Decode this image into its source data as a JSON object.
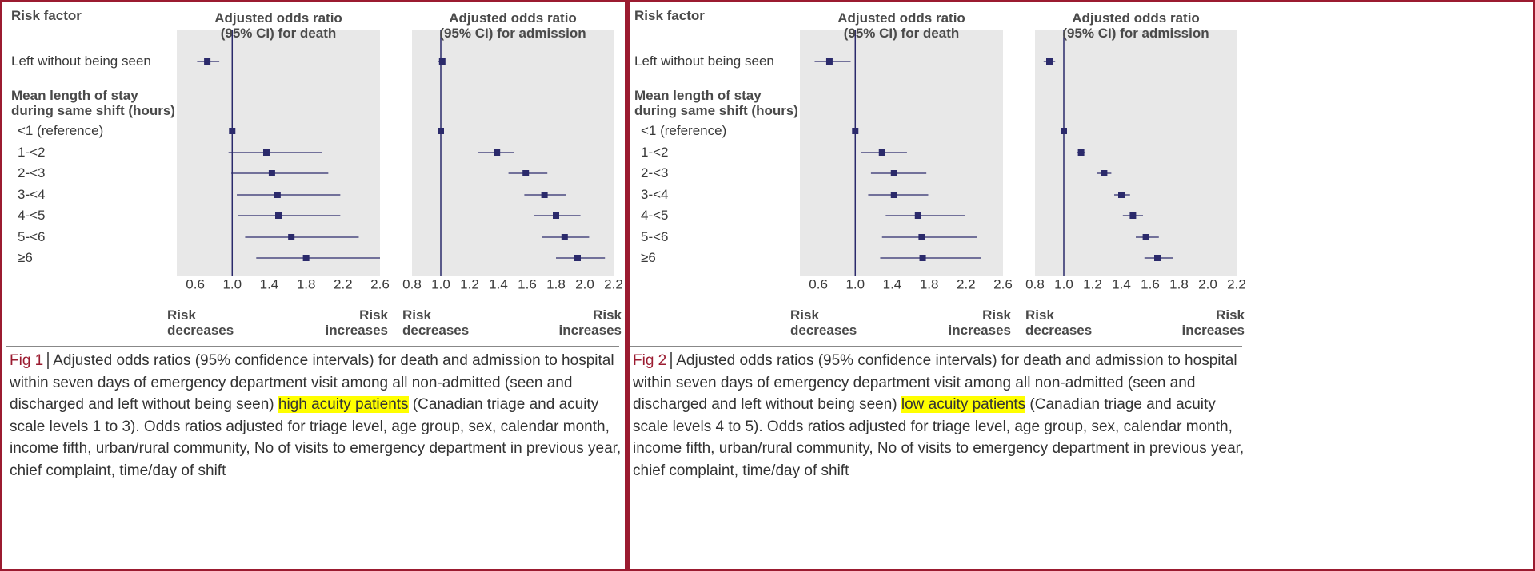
{
  "figures": [
    {
      "risk_factor_header": "Risk factor",
      "row_labels": [
        "Left without being seen",
        "Mean length of stay\nduring same shift (hours)",
        "<1 (reference)",
        "1-<2",
        "2-<3",
        "3-<4",
        "4-<5",
        "5-<6",
        "≥6"
      ],
      "caption": {
        "label": "Fig 1",
        "text_before": "Adjusted odds ratios (95% confidence intervals) for death and admission to hospital within seven days of emergency department visit among all non-admitted (seen and discharged and left without being seen) ",
        "highlight": "high acuity patients",
        "text_after": " (Canadian triage and acuity scale levels 1 to 3). Odds ratios adjusted for triage level, age group, sex, calendar month, income fifth, urban/rural community, No of visits to emergency department in previous year, chief complaint, time/day of shift"
      }
    },
    {
      "risk_factor_header": "Risk factor",
      "row_labels": [
        "Left without being seen",
        "Mean length of stay\nduring same shift (hours)",
        "<1 (reference)",
        "1-<2",
        "2-<3",
        "3-<4",
        "4-<5",
        "5-<6",
        "≥6"
      ],
      "caption": {
        "label": "Fig 2",
        "text_before": "Adjusted odds ratios (95% confidence intervals) for death and admission to hospital within seven days of emergency department visit among all non-admitted (seen and discharged and left without being seen) ",
        "highlight": "low acuity patients",
        "text_after": " (Canadian triage and acuity scale levels 4 to 5). Odds ratios adjusted for triage level, age group, sex, calendar month, income fifth, urban/rural community, No of visits to emergency department in previous year, chief complaint, time/day of shift"
      }
    }
  ],
  "chart_data": [
    {
      "type": "forest",
      "title": "Adjusted odds ratio\n(95% CI) for death",
      "color": "#2b2a6b",
      "values": [
        0.73,
        null,
        1.0,
        1.37,
        1.43,
        1.49,
        1.5,
        1.64,
        1.8
      ],
      "lower": [
        0.62,
        null,
        1.0,
        0.96,
        0.99,
        1.05,
        1.06,
        1.14,
        1.26
      ],
      "upper": [
        0.86,
        null,
        1.0,
        1.97,
        2.04,
        2.17,
        2.17,
        2.37,
        2.6
      ],
      "reference": 1,
      "xlim": [
        0.4,
        2.6
      ],
      "xticks": [
        0.6,
        {
          "value": 1,
          "label": "1.0"
        },
        1.4,
        1.8,
        2.2,
        2.6
      ],
      "annotations": [
        "Risk\ndecreases",
        "Risk\nincreases"
      ]
    },
    {
      "type": "forest",
      "title": "Adjusted odds ratio\n(95% CI) for admission",
      "color": "#2b2a6b",
      "values": [
        1.01,
        null,
        1.0,
        1.39,
        1.59,
        1.72,
        1.8,
        1.86,
        1.95
      ],
      "lower": [
        0.98,
        null,
        1.0,
        1.26,
        1.47,
        1.58,
        1.65,
        1.7,
        1.8
      ],
      "upper": [
        1.03,
        null,
        1.0,
        1.51,
        1.74,
        1.87,
        1.97,
        2.03,
        2.14
      ],
      "reference": 1,
      "xlim": [
        0.8,
        2.2
      ],
      "xticks": [
        0.8,
        {
          "value": 1,
          "label": "1.0"
        },
        1.2,
        1.4,
        1.6,
        1.8,
        {
          "value": 2,
          "label": "2.0"
        },
        2.2
      ],
      "annotations": [
        "Risk\ndecreases",
        "Risk\nincreases"
      ]
    },
    {
      "type": "forest",
      "title": "Adjusted odds ratio\n(95% CI) for death",
      "color": "#2b2a6b",
      "values": [
        0.72,
        null,
        1.0,
        1.29,
        1.42,
        1.42,
        1.68,
        1.72,
        1.73
      ],
      "lower": [
        0.56,
        null,
        1.0,
        1.06,
        1.17,
        1.14,
        1.33,
        1.29,
        1.27
      ],
      "upper": [
        0.95,
        null,
        1.0,
        1.56,
        1.77,
        1.79,
        2.19,
        2.32,
        2.36
      ],
      "reference": 1,
      "xlim": [
        0.4,
        2.6
      ],
      "xticks": [
        0.6,
        {
          "value": 1,
          "label": "1.0"
        },
        1.4,
        1.8,
        2.2,
        2.6
      ],
      "annotations": [
        "Risk\ndecreases",
        "Risk\nincreases"
      ]
    },
    {
      "type": "forest",
      "title": "Adjusted odds ratio\n(95% CI) for admission",
      "color": "#2b2a6b",
      "values": [
        0.9,
        null,
        1.0,
        1.12,
        1.28,
        1.4,
        1.48,
        1.57,
        1.65
      ],
      "lower": [
        0.86,
        null,
        1.0,
        1.09,
        1.23,
        1.35,
        1.41,
        1.5,
        1.56
      ],
      "upper": [
        0.94,
        null,
        1.0,
        1.15,
        1.33,
        1.46,
        1.55,
        1.66,
        1.76
      ],
      "reference": 1,
      "xlim": [
        0.8,
        2.2
      ],
      "xticks": [
        0.8,
        {
          "value": 1,
          "label": "1.0"
        },
        1.2,
        1.4,
        1.6,
        1.8,
        {
          "value": 2,
          "label": "2.0"
        },
        2.2
      ],
      "annotations": [
        "Risk\ndecreases",
        "Risk\nincreases"
      ]
    }
  ]
}
